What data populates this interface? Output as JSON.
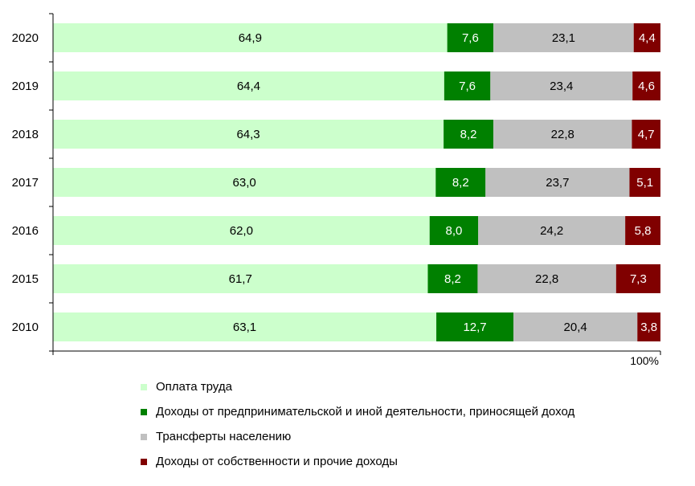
{
  "chart_data": {
    "type": "bar",
    "orientation": "horizontal",
    "stacked": true,
    "categories": [
      "2020",
      "2019",
      "2018",
      "2017",
      "2016",
      "2015",
      "2010"
    ],
    "series": [
      {
        "name": "Оплата труда",
        "color": "#ccffcc",
        "label_color": "#000000",
        "values": [
          64.9,
          64.4,
          64.3,
          63.0,
          62.0,
          61.7,
          63.1
        ],
        "labels": [
          "64,9",
          "64,4",
          "64,3",
          "63,0",
          "62,0",
          "61,7",
          "63,1"
        ]
      },
      {
        "name": "Доходы от предпринимательской и иной деятельности, приносящей доход",
        "color": "#008000",
        "label_color": "#ffffff",
        "values": [
          7.6,
          7.6,
          8.2,
          8.2,
          8.0,
          8.2,
          12.7
        ],
        "labels": [
          "7,6",
          "7,6",
          "8,2",
          "8,2",
          "8,0",
          "8,2",
          "12,7"
        ]
      },
      {
        "name": "Трансферты населению",
        "color": "#c0c0c0",
        "label_color": "#000000",
        "values": [
          23.1,
          23.4,
          22.8,
          23.7,
          24.2,
          22.8,
          20.4
        ],
        "labels": [
          "23,1",
          "23,4",
          "22,8",
          "23,7",
          "24,2",
          "22,8",
          "20,4"
        ]
      },
      {
        "name": "Доходы от собственности и прочие доходы",
        "color": "#800000",
        "label_color": "#ffffff",
        "values": [
          4.4,
          4.6,
          4.7,
          5.1,
          5.8,
          7.3,
          3.8
        ],
        "labels": [
          "4,4",
          "4,6",
          "4,7",
          "5,1",
          "5,8",
          "7,3",
          "3,8"
        ]
      }
    ],
    "xlim": [
      0,
      100
    ],
    "x_tick_label": "100%",
    "grid": false,
    "legend_position": "bottom"
  }
}
